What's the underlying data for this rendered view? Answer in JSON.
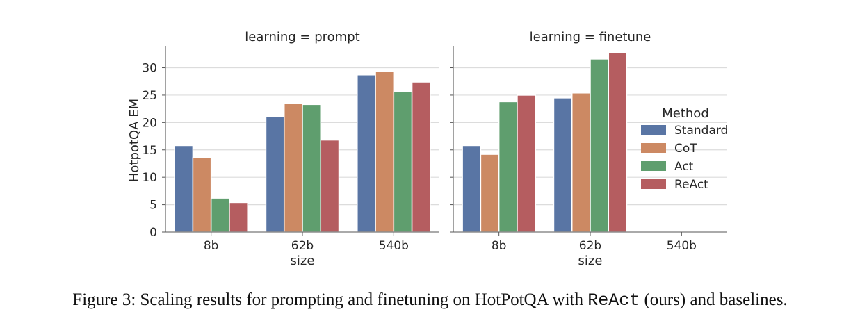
{
  "chart_data": {
    "type": "bar",
    "ylabel": "HotpotQA EM",
    "xlabel": "size",
    "ylim": [
      0,
      34
    ],
    "yticks": [
      0,
      5,
      10,
      15,
      20,
      25,
      30
    ],
    "categories": [
      "8b",
      "62b",
      "540b"
    ],
    "grid": "horizontal",
    "legend": {
      "title": "Method",
      "placement": "right",
      "entries": [
        "Standard",
        "CoT",
        "Act",
        "ReAct"
      ]
    },
    "colors": [
      "#5975a4",
      "#cc8963",
      "#5f9e6e",
      "#b55d60"
    ],
    "panels": [
      {
        "title": "learning = prompt",
        "series": [
          {
            "name": "Standard",
            "values": [
              15.8,
              21.1,
              28.7
            ]
          },
          {
            "name": "CoT",
            "values": [
              13.6,
              23.5,
              29.4
            ]
          },
          {
            "name": "Act",
            "values": [
              6.2,
              23.3,
              25.7
            ]
          },
          {
            "name": "ReAct",
            "values": [
              5.4,
              16.8,
              27.4
            ]
          }
        ]
      },
      {
        "title": "learning = finetune",
        "series": [
          {
            "name": "Standard",
            "values": [
              15.8,
              24.5,
              null
            ]
          },
          {
            "name": "CoT",
            "values": [
              14.2,
              25.4,
              null
            ]
          },
          {
            "name": "Act",
            "values": [
              23.8,
              31.6,
              null
            ]
          },
          {
            "name": "ReAct",
            "values": [
              25.0,
              32.7,
              null
            ]
          }
        ]
      }
    ]
  },
  "caption": {
    "prefix": "Figure 3: Scaling results for prompting and finetuning on HotPotQA with ",
    "code": "ReAct",
    "suffix": " (ours) and baselines."
  }
}
